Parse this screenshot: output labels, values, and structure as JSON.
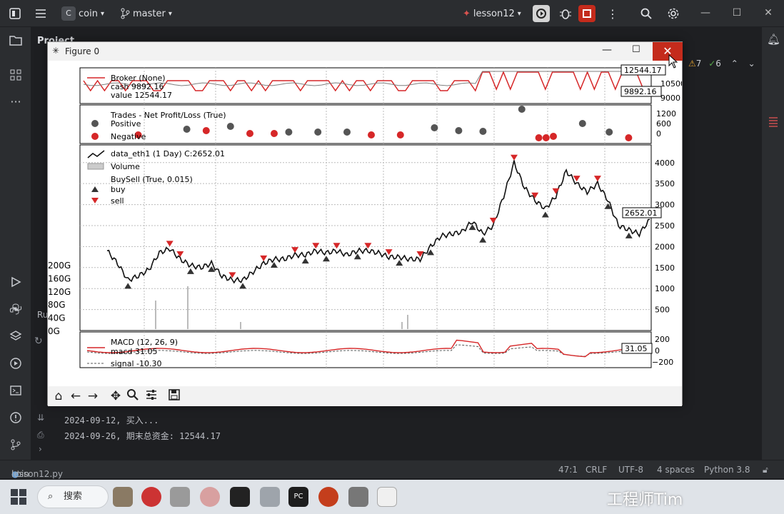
{
  "ide": {
    "project_name": "coin",
    "project_badge": "C",
    "branch": "master",
    "run_config": "lesson12",
    "left_panel_title": "Project",
    "editor_tab": "lesson12.py",
    "problems": {
      "warnings": "7",
      "checks": "6"
    }
  },
  "console": {
    "lines": [
      "2024-09-12, 买入...",
      "2024-09-26, 期末总资金: 12544.17"
    ],
    "run_label": "Ru"
  },
  "statusbar": {
    "breadcrumb": [
      "coin",
      "bt",
      "lesson12.py"
    ],
    "position": "47:1",
    "line_ending": "CRLF",
    "encoding": "UTF-8",
    "indent": "4 spaces",
    "interpreter": "Python 3.8"
  },
  "taskbar": {
    "search_label": "搜索",
    "watermark": "工程师Tim"
  },
  "figure": {
    "title": "Figure 0",
    "broker_panel": {
      "legend": [
        "Broker (None)",
        "cash 9892.16",
        "value 12544.17"
      ],
      "value_tag": "12544.17",
      "cash_tag": "9892.16",
      "ticks": [
        "12000",
        "10500",
        "9000"
      ],
      "colors": {
        "cash": "#d62728",
        "value": "#7f7f7f"
      }
    },
    "trades_panel": {
      "legend": [
        "Trades - Net Profit/Loss (True)",
        "Positive",
        "Negative"
      ],
      "ticks": [
        "1200",
        "600",
        "0"
      ],
      "colors": {
        "positive": "#333333",
        "negative": "#d62728"
      }
    },
    "price_panel": {
      "legend": [
        "data_eth1 (1 Day) C:2652.01",
        "Volume",
        "BuySell (True, 0.015)",
        "buy",
        "sell"
      ],
      "last_tag": "2652.01",
      "price_ticks": [
        "4000",
        "3500",
        "3000",
        "2500",
        "2000",
        "1500",
        "1000",
        "500"
      ],
      "volume_ticks": [
        "200G",
        "160G",
        "120G",
        "80G",
        "40G",
        "0G"
      ],
      "colors": {
        "line": "#111111",
        "buy": "#333333",
        "sell": "#d62728"
      }
    },
    "macd_panel": {
      "legend": [
        "MACD (12, 26, 9)",
        "macd 31.05",
        "signal -10.30"
      ],
      "last_tag": "31.05",
      "ticks": [
        "200",
        "0",
        "−200"
      ],
      "colors": {
        "macd": "#d62728",
        "signal": "#555555"
      }
    },
    "toolbar": [
      "home-icon",
      "back-icon",
      "forward-icon",
      "pan-icon",
      "zoom-icon",
      "configure-icon",
      "save-icon"
    ]
  },
  "chart_data": {
    "type": "line",
    "title": "",
    "series": [
      {
        "name": "data_eth1 (1 Day) C:2652.01",
        "values": [
          1900,
          1600,
          1200,
          1300,
          1450,
          1850,
          1950,
          1700,
          1550,
          1500,
          1600,
          1300,
          1200,
          1200,
          1400,
          1600,
          1700,
          1700,
          1800,
          1800,
          1900,
          1850,
          1900,
          1800,
          1900,
          1900,
          1850,
          1750,
          1750,
          1700,
          1700,
          2000,
          2250,
          2300,
          2350,
          2600,
          2300,
          2500,
          3200,
          4000,
          3400,
          3100,
          2900,
          3200,
          3800,
          3500,
          3300,
          3500,
          3100,
          2500,
          2400,
          2300,
          2650
        ]
      }
    ],
    "ylim": [
      0,
      4200
    ],
    "yticks": [
      500,
      1000,
      1500,
      2000,
      2500,
      3000,
      3500,
      4000
    ]
  }
}
